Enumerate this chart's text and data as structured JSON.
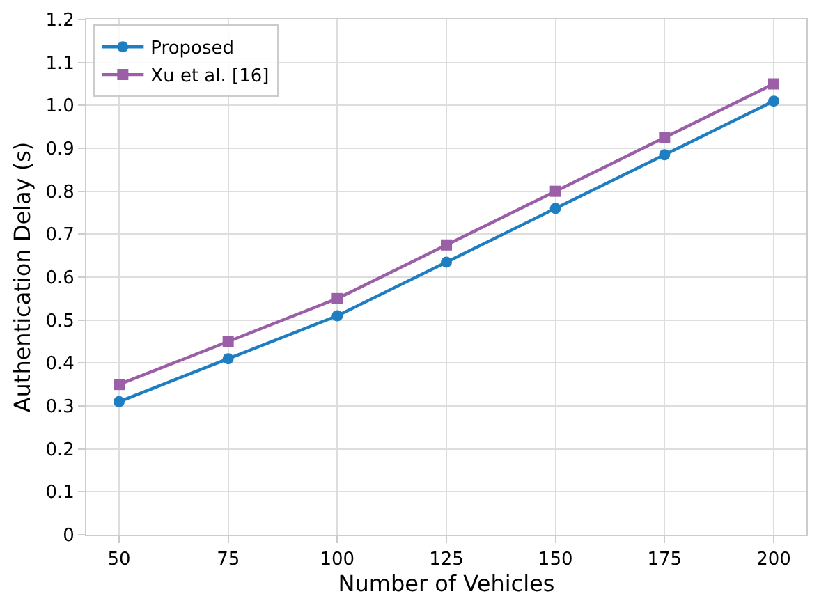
{
  "chart_data": {
    "type": "line",
    "xlabel": "Number of Vehicles",
    "ylabel": "Authentication Delay (s)",
    "x": [
      50,
      75,
      100,
      125,
      150,
      175,
      200
    ],
    "series": [
      {
        "name": "Proposed",
        "color": "#1f7ec1",
        "marker": "circle",
        "values": [
          0.31,
          0.41,
          0.51,
          0.635,
          0.76,
          0.885,
          1.01
        ]
      },
      {
        "name": "Xu et al. [16]",
        "color": "#9b5fa8",
        "marker": "square",
        "values": [
          0.35,
          0.45,
          0.55,
          0.675,
          0.8,
          0.925,
          1.05
        ]
      }
    ],
    "xlim": [
      42.5,
      207.5
    ],
    "xticks": [
      50,
      75,
      100,
      125,
      150,
      175,
      200
    ],
    "ylim": [
      0,
      1.2
    ],
    "yticks": [
      0,
      {
        "value": 0.1,
        "label": "0.1"
      },
      {
        "value": 0.2,
        "label": "0.2"
      },
      {
        "value": 0.3,
        "label": "0.3"
      },
      {
        "value": 0.4,
        "label": "0.4"
      },
      {
        "value": 0.5,
        "label": "0.5"
      },
      {
        "value": 0.6,
        "label": "0.6"
      },
      {
        "value": 0.7,
        "label": "0.7"
      },
      {
        "value": 0.8,
        "label": "0.8"
      },
      {
        "value": 0.9,
        "label": "0.9"
      },
      {
        "value": 1.0,
        "label": "1.0"
      },
      {
        "value": 1.1,
        "label": "1.1"
      },
      {
        "value": 1.2,
        "label": "1.2"
      }
    ],
    "grid": true,
    "legend": "top left",
    "line_style": "solid"
  }
}
